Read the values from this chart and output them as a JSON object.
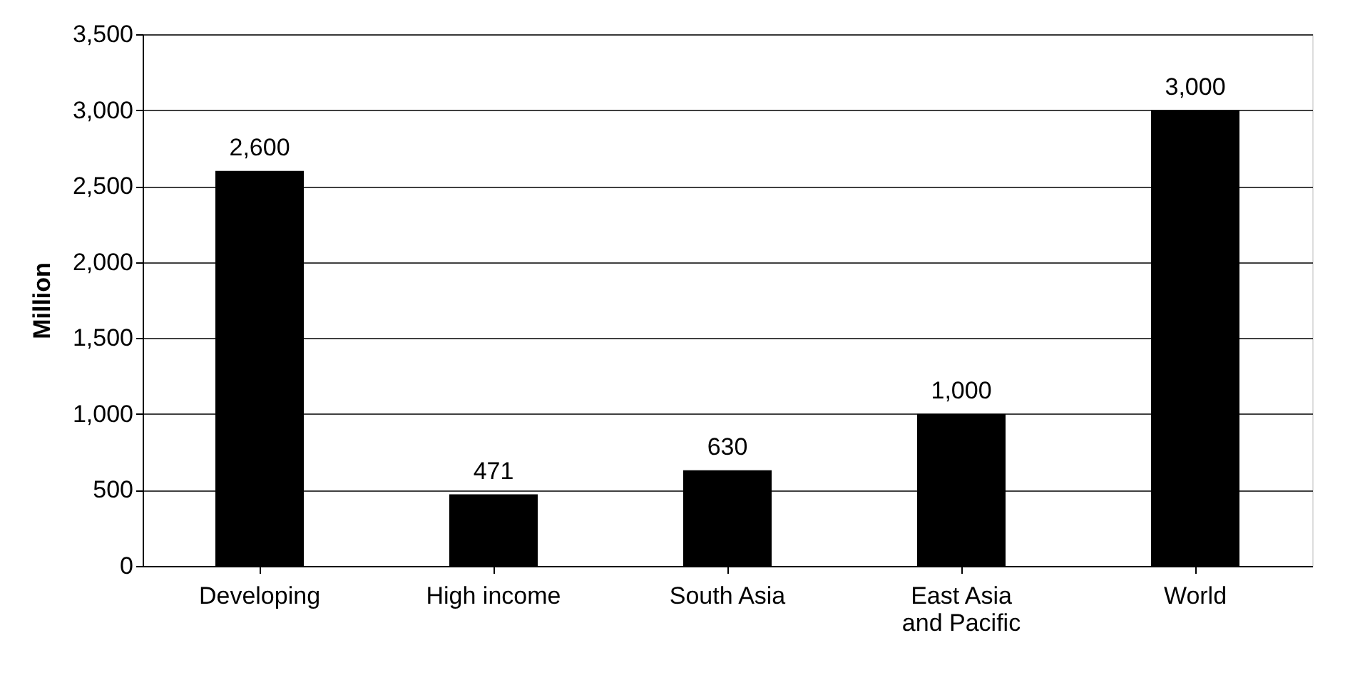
{
  "chart_data": {
    "type": "bar",
    "ylabel": "Million",
    "categories": [
      "Developing",
      "High income",
      "South Asia",
      "East Asia and Pacific",
      "World"
    ],
    "values": [
      2600,
      471,
      630,
      1000,
      3000
    ],
    "value_labels": [
      "2,600",
      "471",
      "630",
      "1,000",
      "3,000"
    ],
    "color": "#000000",
    "ylim": [
      0,
      3500
    ],
    "yticks": [
      {
        "value": 0,
        "label": "0"
      },
      {
        "value": 500,
        "label": "500"
      },
      {
        "value": 1000,
        "label": "1,000"
      },
      {
        "value": 1500,
        "label": "1,500"
      },
      {
        "value": 2000,
        "label": "2,000"
      },
      {
        "value": 2500,
        "label": "2,500"
      },
      {
        "value": 3000,
        "label": "3,000"
      },
      {
        "value": 3500,
        "label": "3,500"
      }
    ],
    "grid": "y"
  }
}
